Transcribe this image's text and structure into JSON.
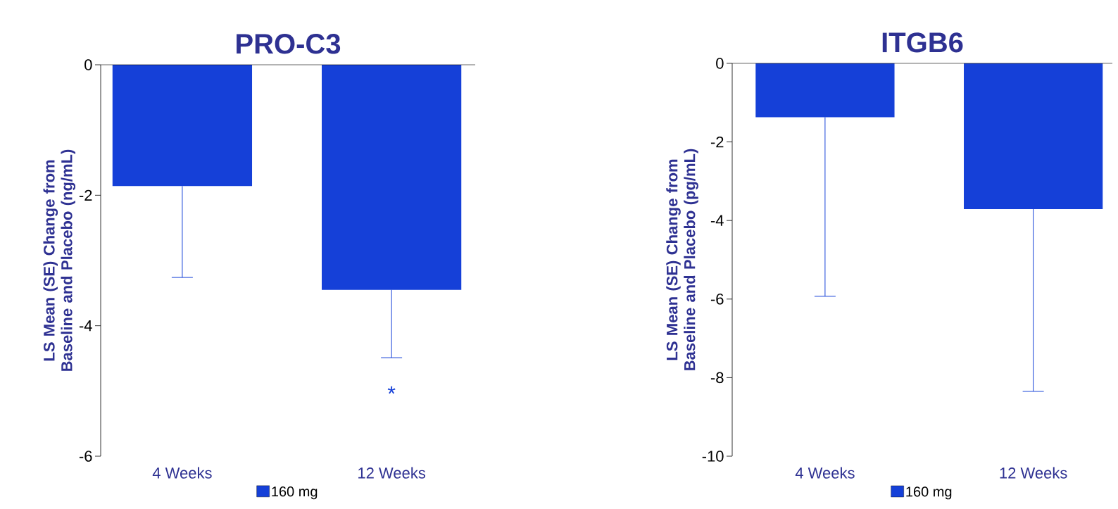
{
  "chart_data": [
    {
      "type": "bar",
      "title": "PRO-C3",
      "ylabel": "LS Mean (SE) Change from Baseline and Placebo (ng/mL)",
      "categories": [
        "4 Weeks",
        "12 Weeks"
      ],
      "series": [
        {
          "name": "160 mg",
          "color": "#1540d8",
          "values": [
            -1.86,
            -3.45
          ],
          "errors": [
            [
              -3.26,
              -1.86
            ],
            [
              -4.49,
              -3.45
            ]
          ]
        }
      ],
      "ylim": [
        -6,
        0
      ],
      "yticks": [
        -6,
        -4,
        -2,
        0
      ],
      "legend": "bottom",
      "annotations": [
        "*"
      ]
    },
    {
      "type": "bar",
      "title": "ITGB6",
      "ylabel": "LS Mean (SE) Change from Baseline and Placebo (pg/mL)",
      "categories": [
        "4 Weeks",
        "12 Weeks"
      ],
      "series": [
        {
          "name": "160 mg",
          "color": "#1540d8",
          "values": [
            -1.37,
            -3.71
          ],
          "errors": [
            [
              -5.93,
              -1.37
            ],
            [
              -8.35,
              -3.71
            ]
          ]
        }
      ],
      "ylim": [
        -10,
        0
      ],
      "yticks": [
        -10,
        -8,
        -6,
        -4,
        -2,
        0
      ],
      "legend": "bottom"
    }
  ]
}
